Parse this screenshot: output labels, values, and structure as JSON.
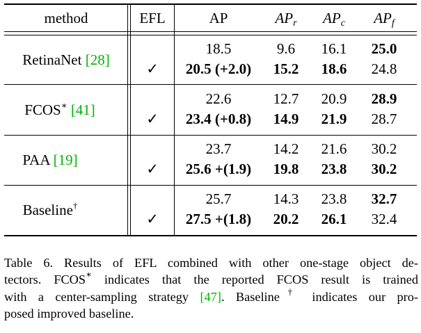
{
  "header": {
    "method": "method",
    "efl": "EFL",
    "ap": "AP",
    "apr": "AP",
    "apr_sub": "r",
    "apc": "AP",
    "apc_sub": "c",
    "apf": "AP",
    "apf_sub": "f"
  },
  "groups": [
    {
      "name": "RetinaNet ",
      "sup": "",
      "cite": "[28]",
      "rows": [
        {
          "efl": "",
          "ap": "18.5",
          "apr": "9.6",
          "apc": "16.1",
          "apf": "25.0"
        },
        {
          "efl": "✓",
          "ap": "20.5 (+2.0)",
          "apr": "15.2",
          "apc": "18.6",
          "apf": "24.8"
        }
      ]
    },
    {
      "name": "FCOS",
      "sup": "∗",
      "cite": "[41]",
      "rows": [
        {
          "efl": "",
          "ap": "22.6",
          "apr": "12.7",
          "apc": "20.9",
          "apf": "28.9"
        },
        {
          "efl": "✓",
          "ap": "23.4 (+0.8)",
          "apr": "14.9",
          "apc": "21.9",
          "apf": "28.7"
        }
      ]
    },
    {
      "name": "PAA ",
      "sup": "",
      "cite": "[19]",
      "rows": [
        {
          "efl": "",
          "ap": "23.7",
          "apr": "14.2",
          "apc": "21.6",
          "apf": "30.2"
        },
        {
          "efl": "✓",
          "ap": "25.6 +(1.9)",
          "apr": "19.8",
          "apc": "23.8",
          "apf": "30.2"
        }
      ]
    },
    {
      "name": "Baseline",
      "sup": "†",
      "cite": "",
      "rows": [
        {
          "efl": "",
          "ap": "25.7",
          "apr": "14.3",
          "apc": "23.8",
          "apf": "32.7"
        },
        {
          "efl": "✓",
          "ap": "27.5 +(1.8)",
          "apr": "20.2",
          "apc": "26.1",
          "apf": "32.4"
        }
      ]
    }
  ],
  "caption": {
    "l1": "Table 6. Results of EFL combined with other one-stage object de-",
    "l2a": "tectors. FCOS",
    "l2sup": "∗",
    "l2b": " indicates that the reported FCOS result is trained",
    "l3a": "with a center-sampling strategy ",
    "l3cite": "[47]",
    "l3b": ". Baseline",
    "l3sup": "†",
    "l3c": " indicates our pro-",
    "l4": "posed improved baseline."
  }
}
